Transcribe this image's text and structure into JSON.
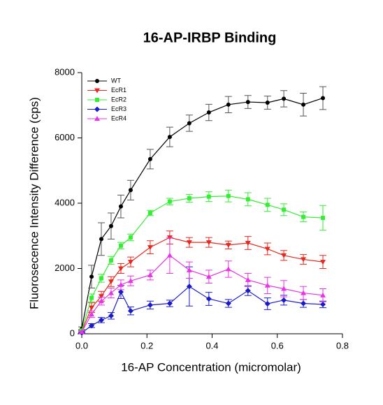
{
  "chart_data": {
    "type": "line",
    "title": "16-AP-IRBP Binding",
    "xlabel": "16-AP Concentration (micromolar)",
    "ylabel": "Fluorosecence Intensity Difference (cps)",
    "x": [
      0,
      0.03,
      0.06,
      0.09,
      0.12,
      0.15,
      0.21,
      0.27,
      0.33,
      0.39,
      0.45,
      0.51,
      0.57,
      0.62,
      0.68,
      0.74
    ],
    "xlim": [
      0,
      0.8
    ],
    "xticks": [
      {
        "value": 0,
        "label": "0.0"
      },
      0.2,
      0.4,
      0.6,
      0.8
    ],
    "ylim": [
      0,
      8000
    ],
    "yticks": [
      0,
      2000,
      4000,
      6000,
      8000
    ],
    "legend": "upper left",
    "series": [
      {
        "name": "WT",
        "color": "#000000",
        "marker": "circle",
        "values": [
          150,
          1750,
          2900,
          3300,
          3900,
          4400,
          5350,
          6030,
          6450,
          6780,
          7020,
          7100,
          7080,
          7200,
          7020,
          7220
        ],
        "errors": [
          60,
          350,
          500,
          400,
          350,
          300,
          300,
          300,
          250,
          250,
          250,
          200,
          200,
          250,
          350,
          350
        ]
      },
      {
        "name": "EcR1",
        "color": "#e8271f",
        "marker": "triangle-down",
        "values": [
          80,
          800,
          1150,
          1600,
          2000,
          2200,
          2650,
          2950,
          2800,
          2800,
          2720,
          2780,
          2600,
          2400,
          2280,
          2200
        ],
        "errors": [
          40,
          150,
          150,
          150,
          150,
          150,
          200,
          200,
          150,
          150,
          120,
          200,
          180,
          150,
          150,
          200
        ]
      },
      {
        "name": "EcR2",
        "color": "#33ee33",
        "marker": "square",
        "values": [
          100,
          1100,
          1700,
          2250,
          2700,
          2950,
          3700,
          4050,
          4150,
          4200,
          4220,
          4120,
          3950,
          3800,
          3580,
          3550
        ],
        "errors": [
          40,
          120,
          120,
          120,
          100,
          100,
          80,
          100,
          120,
          150,
          180,
          200,
          200,
          180,
          150,
          380
        ]
      },
      {
        "name": "EcR3",
        "color": "#1a1acc",
        "marker": "diamond",
        "values": [
          30,
          250,
          420,
          550,
          1280,
          700,
          880,
          930,
          1450,
          1070,
          930,
          1320,
          920,
          1030,
          930,
          900
        ],
        "errors": [
          20,
          60,
          80,
          100,
          200,
          120,
          120,
          100,
          600,
          200,
          120,
          150,
          180,
          150,
          120,
          100
        ]
      },
      {
        "name": "EcR4",
        "color": "#e833e8",
        "marker": "triangle-up",
        "values": [
          60,
          600,
          1000,
          1250,
          1500,
          1620,
          1800,
          2400,
          1950,
          1750,
          1980,
          1650,
          1480,
          1380,
          1250,
          1180
        ],
        "errors": [
          30,
          100,
          120,
          150,
          150,
          150,
          150,
          550,
          250,
          200,
          250,
          200,
          250,
          250,
          200,
          200
        ]
      }
    ]
  }
}
